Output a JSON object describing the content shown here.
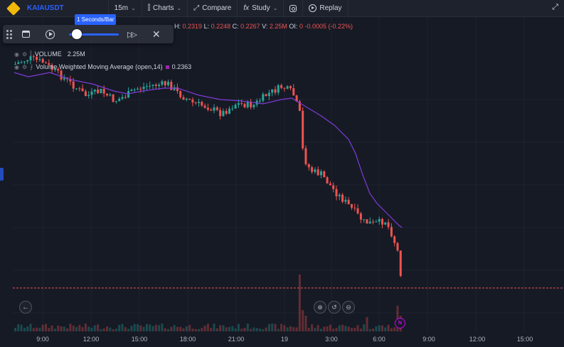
{
  "toolbar": {
    "symbol": "KAIAUSDT",
    "interval": "15m",
    "charts_label": "Charts",
    "compare_label": "Compare",
    "study_label": "Study",
    "replay_label": "Replay"
  },
  "replay": {
    "speed_tooltip": "1 Seconds/Bar"
  },
  "legend": {
    "high_key": "H:",
    "high": "0.2319",
    "low_key": "L:",
    "low": "0.2248",
    "close_key": "C:",
    "close": "0.2267",
    "volume_key": "V:",
    "volume": "2.25M",
    "oi_key": "OI:",
    "oi": "0",
    "change": "-0.0005",
    "change_pct": "(-0.22%)"
  },
  "indicators": {
    "volume_label": "VOLUME",
    "volume_value": "2.25M",
    "vwma_label": "Volume Weighted Moving Average (open,14)",
    "vwma_value": "0.2363"
  },
  "time_axis": [
    "9:00",
    "12:00",
    "15:00",
    "18:00",
    "21:00",
    "19",
    "3:00",
    "6:00",
    "9:00",
    "12:00",
    "15:00"
  ],
  "badge": "N",
  "colors": {
    "up": "#26a69a",
    "down": "#ef5350",
    "vwma": "#9c27b0",
    "accent": "#2962ff",
    "background": "#161a25"
  },
  "icons": [
    "binance-logo-icon",
    "candle-chart-icon",
    "compare-icon",
    "study-fx-icon",
    "instagram-icon",
    "replay-play-icon",
    "expand-icon",
    "grip-icon",
    "calendar-icon",
    "play-icon",
    "fast-forward-icon",
    "close-icon",
    "back-arrow-icon",
    "zoom-in-icon",
    "zoom-reset-icon",
    "zoom-out-icon",
    "eye-icon",
    "settings-icon"
  ]
}
